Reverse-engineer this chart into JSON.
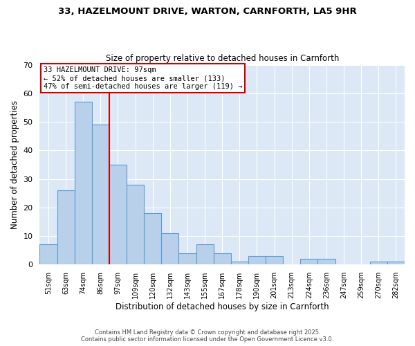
{
  "title1": "33, HAZELMOUNT DRIVE, WARTON, CARNFORTH, LA5 9HR",
  "title2": "Size of property relative to detached houses in Carnforth",
  "xlabel": "Distribution of detached houses by size in Carnforth",
  "ylabel": "Number of detached properties",
  "categories": [
    "51sqm",
    "63sqm",
    "74sqm",
    "86sqm",
    "97sqm",
    "109sqm",
    "120sqm",
    "132sqm",
    "143sqm",
    "155sqm",
    "167sqm",
    "178sqm",
    "190sqm",
    "201sqm",
    "213sqm",
    "224sqm",
    "236sqm",
    "247sqm",
    "259sqm",
    "270sqm",
    "282sqm"
  ],
  "values": [
    7,
    26,
    57,
    49,
    35,
    28,
    18,
    11,
    4,
    7,
    4,
    1,
    3,
    3,
    0,
    2,
    2,
    0,
    0,
    1,
    1
  ],
  "bar_color": "#b8d0ea",
  "bar_edge_color": "#5b9bd5",
  "vline_color": "#cc0000",
  "annotation_text": "33 HAZELMOUNT DRIVE: 97sqm\n← 52% of detached houses are smaller (133)\n47% of semi-detached houses are larger (119) →",
  "annotation_box_color": "#cc0000",
  "bg_color": "#dce8f5",
  "ylim": [
    0,
    70
  ],
  "yticks": [
    0,
    10,
    20,
    30,
    40,
    50,
    60,
    70
  ],
  "footer1": "Contains HM Land Registry data © Crown copyright and database right 2025.",
  "footer2": "Contains public sector information licensed under the Open Government Licence v3.0."
}
